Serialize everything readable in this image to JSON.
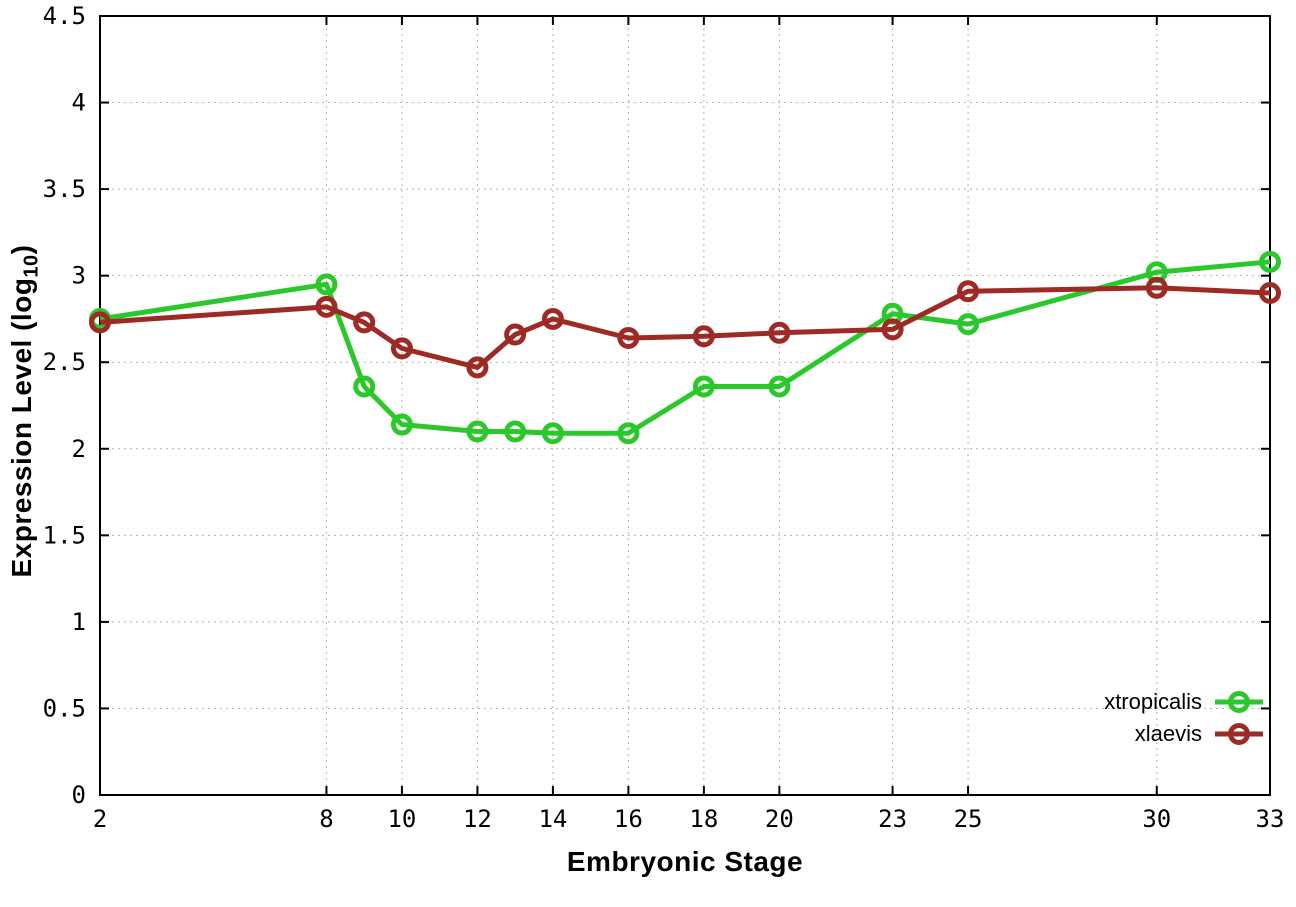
{
  "chart_data": {
    "type": "line",
    "title": "",
    "xlabel": "Embryonic Stage",
    "ylabel": "Expression Level (log10)",
    "ylabel_rich": {
      "prefix": "Expression Level (log",
      "sub": "10",
      "suffix": ")"
    },
    "x": [
      2,
      8,
      9,
      10,
      12,
      13,
      14,
      16,
      18,
      20,
      23,
      25,
      30,
      33
    ],
    "series": [
      {
        "name": "xtropicalis",
        "color": "#2bc82b",
        "values": [
          2.75,
          2.95,
          2.36,
          2.14,
          2.1,
          2.1,
          2.09,
          2.09,
          2.36,
          2.36,
          2.78,
          2.72,
          3.02,
          3.08
        ]
      },
      {
        "name": "xlaevis",
        "color": "#9e2a25",
        "values": [
          2.73,
          2.82,
          2.73,
          2.58,
          2.47,
          2.66,
          2.75,
          2.64,
          2.65,
          2.67,
          2.69,
          2.91,
          2.93,
          2.9
        ]
      }
    ],
    "x_ticks": [
      2,
      8,
      10,
      12,
      14,
      16,
      18,
      20,
      23,
      25,
      30,
      33
    ],
    "y_ticks": [
      0,
      0.5,
      1,
      1.5,
      2,
      2.5,
      3,
      3.5,
      4,
      4.5
    ],
    "xlim": [
      2,
      33
    ],
    "ylim": [
      0,
      4.5
    ],
    "grid": true,
    "grid_color": "#b4b4b4",
    "border_color": "#000000",
    "legend_position": "bottom-right"
  }
}
